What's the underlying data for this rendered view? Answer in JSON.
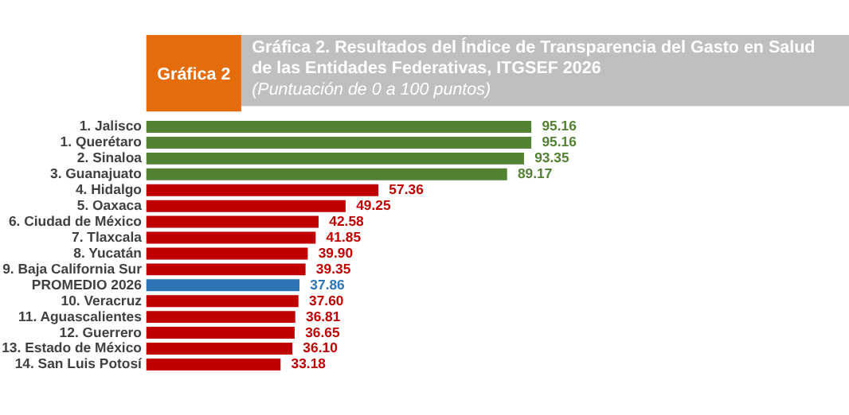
{
  "chart_data": {
    "type": "bar",
    "orientation": "horizontal",
    "title": "Gráfica 2. Resultados del Índice de Transparencia del Gasto en Salud de las Entidades Federativas, ITGSEF 2026",
    "subtitle": "(Puntuación de 0 a 100 puntos)",
    "annotations": [
      "Gráfica 2"
    ],
    "categories": [
      "1. Jalisco",
      "1. Querétaro",
      "2. Sinaloa",
      "3. Guanajuato",
      "4. Hidalgo",
      "5. Oaxaca",
      "6. Ciudad de México",
      "7. Tlaxcala",
      "8. Yucatán",
      "9. Baja California Sur",
      "PROMEDIO 2026",
      "10. Veracruz",
      "11. Aguascalientes",
      "12. Guerrero",
      "13. Estado de México",
      "14. San Luis Potosí"
    ],
    "values": [
      95.16,
      95.16,
      93.35,
      89.17,
      57.36,
      49.25,
      42.58,
      41.85,
      39.9,
      39.35,
      37.86,
      37.6,
      36.81,
      36.65,
      36.1,
      33.18
    ],
    "colors": [
      "#548235",
      "#548235",
      "#548235",
      "#548235",
      "#c00000",
      "#c00000",
      "#c00000",
      "#c00000",
      "#c00000",
      "#c00000",
      "#2e75b6",
      "#c00000",
      "#c00000",
      "#c00000",
      "#c00000",
      "#c00000"
    ],
    "value_labels": [
      "95.16",
      "95.16",
      "93.35",
      "89.17",
      "57.36",
      "49.25",
      "42.58",
      "41.85",
      "39.90",
      "39.35",
      "37.86",
      "37.60",
      "36.81",
      "36.65",
      "36.10",
      "33.18"
    ]
  }
}
